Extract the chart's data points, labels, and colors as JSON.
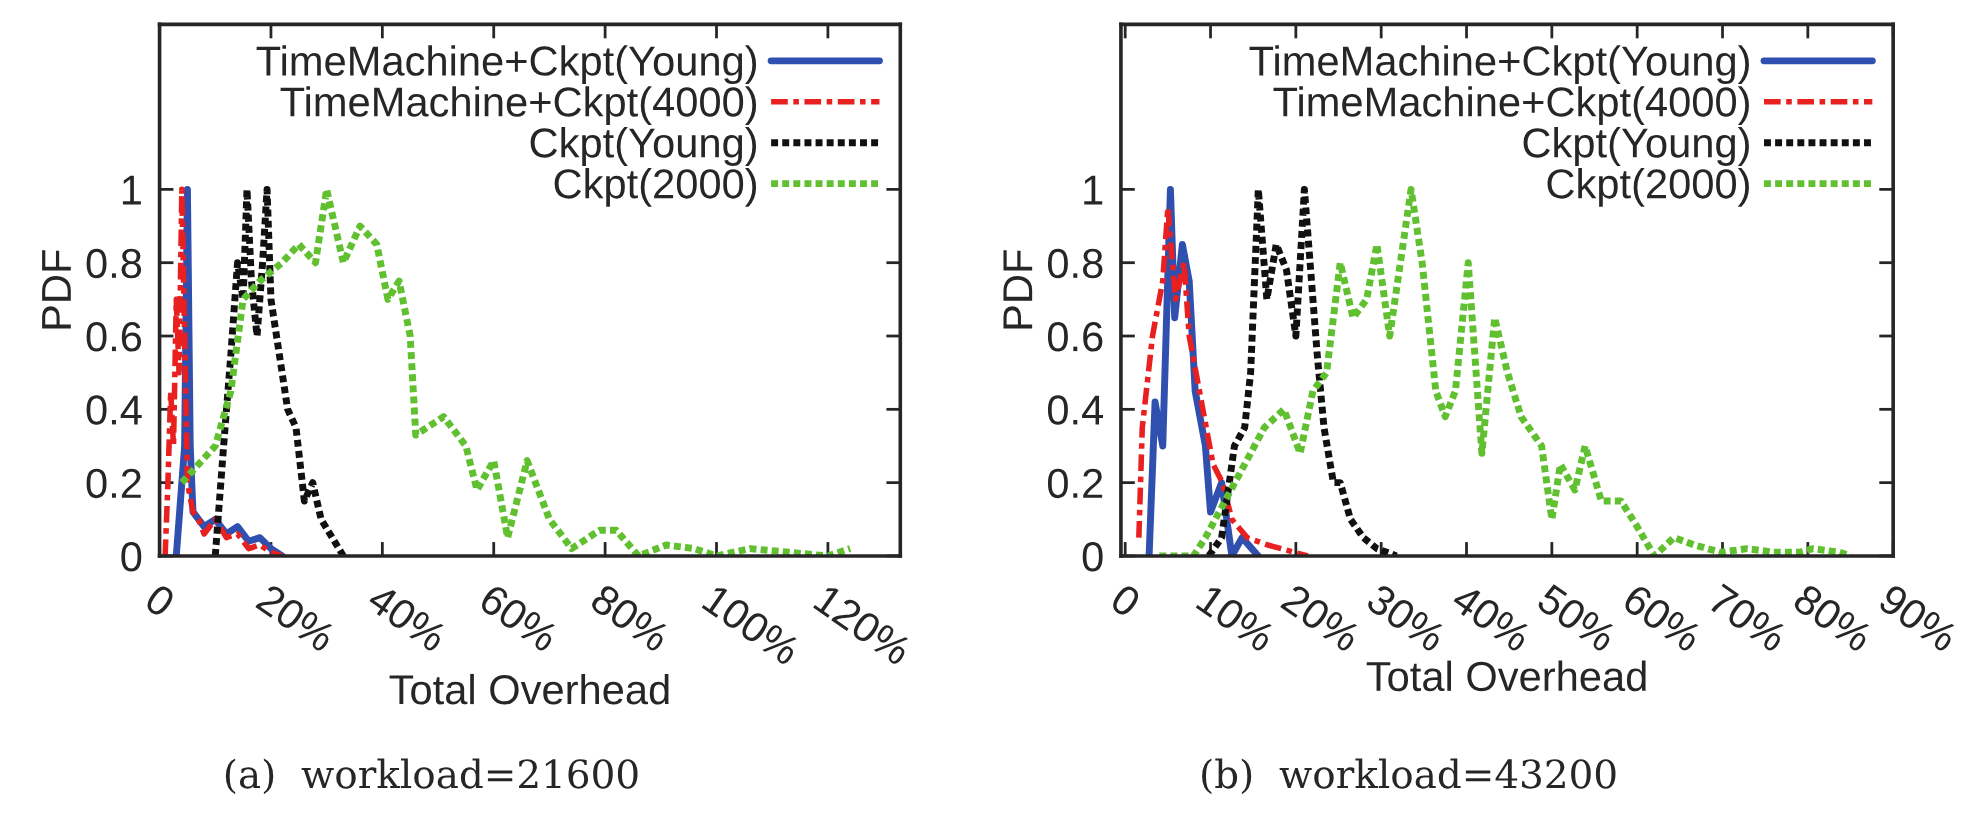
{
  "chart_data": [
    {
      "type": "line",
      "xlabel": "Total Overhead",
      "ylabel": "PDF",
      "annotations": [
        "(a)  workload=21600"
      ],
      "legend": "top right",
      "grid": false,
      "marker": "none",
      "xlim": [
        0,
        133
      ],
      "ylim": [
        0,
        1.45
      ],
      "xticks": [
        0,
        {
          "value": 20,
          "label": "20%"
        },
        {
          "value": 40,
          "label": "40%"
        },
        {
          "value": 60,
          "label": "60%"
        },
        {
          "value": 80,
          "label": "80%"
        },
        {
          "value": 100,
          "label": "100%"
        },
        {
          "value": 120,
          "label": "120%"
        }
      ],
      "yticks": [
        0,
        0.2,
        0.4,
        0.6,
        0.8,
        1
      ],
      "series": [
        {
          "name": "TimeMachine+Ckpt(Young)",
          "color": "#3050b0",
          "line_style": "solid",
          "x": [
            3,
            4.5,
            5,
            5.5,
            6,
            7,
            8,
            10,
            12,
            14,
            16,
            18,
            20,
            22
          ],
          "values": [
            0,
            0.3,
            1,
            0.3,
            0.12,
            0.1,
            0.08,
            0.1,
            0.06,
            0.08,
            0.04,
            0.05,
            0.02,
            0
          ]
        },
        {
          "name": "TimeMachine+Ckpt(4000)",
          "color": "#e82020",
          "line_style": "dashed",
          "x": [
            1,
            1.5,
            2,
            2.5,
            3,
            3.5,
            4,
            4.5,
            5,
            6,
            7,
            8,
            10,
            12,
            14,
            16,
            18,
            20,
            22
          ],
          "values": [
            0,
            0.2,
            0.45,
            0.3,
            0.7,
            0.5,
            1,
            0.6,
            0.2,
            0.12,
            0.1,
            0.06,
            0.1,
            0.05,
            0.06,
            0.02,
            0.03,
            0.01,
            0
          ]
        },
        {
          "name": "Ckpt(Young)",
          "color": "#111111",
          "line_style": "dotted",
          "x": [
            10,
            11.5,
            12.8,
            14,
            15,
            15.7,
            16.5,
            17.5,
            18.5,
            19.3,
            20,
            21,
            22,
            23,
            24.5,
            26,
            27.5,
            29,
            31,
            33
          ],
          "values": [
            0,
            0.3,
            0.55,
            0.8,
            0.7,
            1,
            0.75,
            0.6,
            0.8,
            1,
            0.7,
            0.6,
            0.5,
            0.4,
            0.35,
            0.15,
            0.2,
            0.1,
            0.05,
            0
          ]
        },
        {
          "name": "Ckpt(2000)",
          "color": "#60c030",
          "line_style": "dotted",
          "x": [
            4,
            7,
            10,
            12.8,
            15,
            18,
            22,
            25,
            28,
            30,
            33,
            36,
            39,
            41,
            43,
            45,
            46,
            51,
            55,
            57,
            60,
            62.5,
            66,
            70,
            74,
            79,
            82,
            86,
            91,
            96,
            100,
            106,
            113,
            120,
            124
          ],
          "values": [
            0.2,
            0.25,
            0.3,
            0.45,
            0.7,
            0.75,
            0.8,
            0.85,
            0.8,
            1,
            0.8,
            0.9,
            0.85,
            0.7,
            0.75,
            0.6,
            0.33,
            0.38,
            0.3,
            0.18,
            0.26,
            0.05,
            0.26,
            0.1,
            0.02,
            0.07,
            0.07,
            0,
            0.03,
            0.02,
            0,
            0.02,
            0.01,
            0,
            0.02
          ]
        }
      ]
    },
    {
      "type": "line",
      "xlabel": "Total Overhead",
      "ylabel": "PDF",
      "annotations": [
        "(b)  workload=43200"
      ],
      "legend": "top right",
      "grid": false,
      "marker": "none",
      "xlim": [
        -0.5,
        90
      ],
      "ylim": [
        0,
        1.45
      ],
      "xticks": [
        0,
        {
          "value": 10,
          "label": "10%"
        },
        {
          "value": 20,
          "label": "20%"
        },
        {
          "value": 30,
          "label": "30%"
        },
        {
          "value": 40,
          "label": "40%"
        },
        {
          "value": 50,
          "label": "50%"
        },
        {
          "value": 60,
          "label": "60%"
        },
        {
          "value": 70,
          "label": "70%"
        },
        {
          "value": 80,
          "label": "80%"
        },
        {
          "value": 90,
          "label": "90%"
        }
      ],
      "yticks": [
        0,
        0.2,
        0.4,
        0.6,
        0.8,
        1
      ],
      "series": [
        {
          "name": "TimeMachine+Ckpt(Young)",
          "color": "#3050b0",
          "line_style": "solid",
          "x": [
            2.8,
            3.5,
            4.4,
            5.3,
            5.8,
            6.7,
            7.5,
            8.2,
            9.4,
            10,
            11.3,
            12.5,
            13.7,
            15.6
          ],
          "values": [
            0,
            0.42,
            0.3,
            1,
            0.65,
            0.85,
            0.75,
            0.45,
            0.3,
            0.12,
            0.2,
            0,
            0.05,
            0
          ]
        },
        {
          "name": "TimeMachine+Ckpt(4000)",
          "color": "#e82020",
          "line_style": "dashed",
          "x": [
            1.6,
            2,
            3.2,
            4.4,
            5,
            5.9,
            6.9,
            7.5,
            8.7,
            9.5,
            10.3,
            11.4,
            12.5,
            14.3,
            16.7,
            19.8,
            21.4
          ],
          "values": [
            0.05,
            0.35,
            0.6,
            0.75,
            0.95,
            0.7,
            0.8,
            0.6,
            0.45,
            0.35,
            0.25,
            0.2,
            0.1,
            0.05,
            0.03,
            0.01,
            0
          ]
        },
        {
          "name": "Ckpt(Young)",
          "color": "#111111",
          "line_style": "dotted",
          "x": [
            9.8,
            11.3,
            12.8,
            14,
            14.7,
            15.6,
            16.6,
            17.7,
            18.9,
            20,
            21,
            22.5,
            23.3,
            24.4,
            25.2,
            26.4,
            27.9,
            29.5,
            31.8
          ],
          "values": [
            0,
            0.05,
            0.3,
            0.35,
            0.5,
            1,
            0.7,
            0.85,
            0.78,
            0.6,
            1,
            0.55,
            0.35,
            0.2,
            0.2,
            0.1,
            0.05,
            0.02,
            0
          ]
        },
        {
          "name": "Ckpt(2000)",
          "color": "#60c030",
          "line_style": "dotted",
          "x": [
            4,
            8,
            9.4,
            11.7,
            14,
            16.3,
            18.6,
            20.5,
            22,
            23.6,
            25.2,
            26.7,
            28.3,
            29.5,
            31,
            33.5,
            34.8,
            36.4,
            37.5,
            38.7,
            40.2,
            41.8,
            43.3,
            44.8,
            46.4,
            48.8,
            50,
            51,
            52.7,
            53.9,
            55.8,
            58.1,
            60,
            62,
            64.3,
            66.7,
            69.8,
            72.9,
            76,
            79,
            80.6,
            83.7,
            85
          ],
          "values": [
            0,
            0,
            0.05,
            0.15,
            0.25,
            0.35,
            0.4,
            0.28,
            0.45,
            0.5,
            0.8,
            0.65,
            0.7,
            0.85,
            0.6,
            1,
            0.8,
            0.45,
            0.38,
            0.45,
            0.8,
            0.28,
            0.65,
            0.5,
            0.38,
            0.3,
            0.1,
            0.25,
            0.18,
            0.3,
            0.15,
            0.15,
            0.08,
            0,
            0.05,
            0.03,
            0.01,
            0.02,
            0.01,
            0.01,
            0.02,
            0.01,
            0
          ]
        }
      ]
    }
  ]
}
